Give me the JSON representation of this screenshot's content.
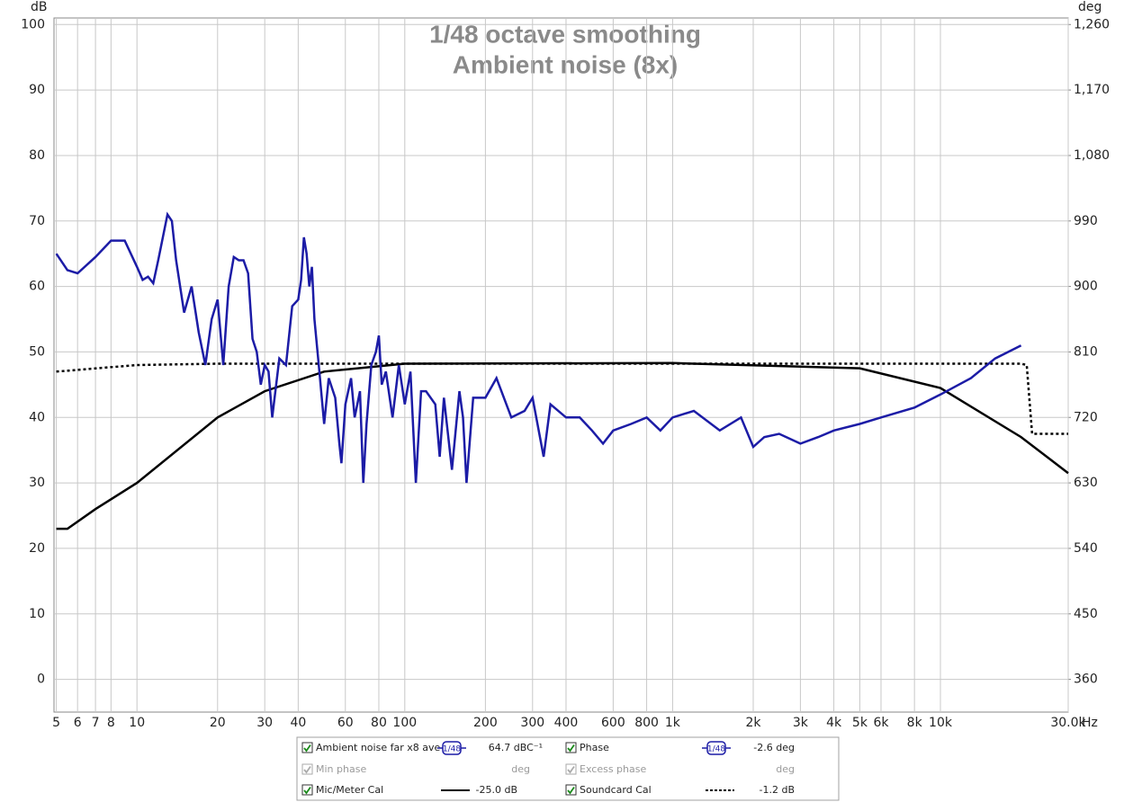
{
  "chart_data": {
    "type": "line",
    "title": "1/48 octave smoothing",
    "subtitle": "Ambient noise (8x)",
    "y_label": "dB",
    "y2_label": "deg",
    "x_label": "Hz",
    "xscale": "log",
    "grid": true,
    "xlim": [
      4.9,
      30000
    ],
    "ylim": [
      -5,
      101
    ],
    "y2lim": [
      315,
      1269
    ],
    "xticks": [
      5,
      6,
      7,
      8,
      10,
      20,
      30,
      40,
      60,
      80,
      100,
      200,
      300,
      400,
      600,
      800,
      {
        "value": 1000,
        "label": "1k"
      },
      {
        "value": 2000,
        "label": "2k"
      },
      {
        "value": 3000,
        "label": "3k"
      },
      {
        "value": 4000,
        "label": "4k"
      },
      {
        "value": 5000,
        "label": "5k"
      },
      {
        "value": 6000,
        "label": "6k"
      },
      {
        "value": 8000,
        "label": "8k"
      },
      {
        "value": 10000,
        "label": "10k"
      },
      {
        "value": 30000,
        "label": "30.0k"
      }
    ],
    "yticks": [
      0,
      10,
      20,
      30,
      40,
      50,
      60,
      70,
      80,
      90,
      100
    ],
    "y2ticks": [
      360,
      450,
      540,
      630,
      720,
      810,
      900,
      990,
      {
        "value": 1080,
        "label": "1,080"
      },
      {
        "value": 1170,
        "label": "1,170"
      },
      {
        "value": 1260,
        "label": "1,260"
      }
    ],
    "series": [
      {
        "name": "Ambient noise far x8 ave",
        "color": "#1c1ca6",
        "dash": "solid",
        "smoothing": "1/48",
        "readout": "64.7 dBC⁻¹",
        "x": [
          5,
          5.5,
          6,
          7,
          8,
          9,
          10,
          10.5,
          11,
          11.5,
          12,
          13,
          13.5,
          14,
          15,
          16,
          17,
          18,
          19,
          20,
          21,
          22,
          23,
          24,
          25,
          26,
          27,
          28,
          29,
          30,
          31,
          32,
          34,
          36,
          38,
          40,
          41,
          42,
          43,
          44,
          45,
          46,
          48,
          50,
          52,
          55,
          57,
          58,
          60,
          63,
          65,
          68,
          70,
          72,
          75,
          78,
          80,
          82,
          85,
          90,
          95,
          100,
          105,
          110,
          115,
          120,
          130,
          135,
          140,
          150,
          160,
          165,
          170,
          180,
          200,
          220,
          250,
          280,
          300,
          330,
          350,
          400,
          450,
          500,
          550,
          600,
          700,
          800,
          900,
          1000,
          1200,
          1500,
          1800,
          2000,
          2200,
          2500,
          3000,
          3500,
          4000,
          5000,
          6000,
          8000,
          10000,
          13000,
          16000,
          20000
        ],
        "values": [
          65,
          62.5,
          62,
          64.5,
          67,
          67,
          63,
          61,
          61.5,
          60.5,
          64,
          71,
          70,
          64,
          56,
          60,
          53,
          48,
          55,
          58,
          48,
          60,
          64.5,
          64,
          64,
          62,
          52,
          50,
          45,
          48,
          47,
          40,
          49,
          48,
          57,
          58,
          61,
          67.5,
          65,
          60,
          63,
          55,
          47,
          39,
          46,
          43,
          36,
          33,
          42,
          46,
          40,
          44,
          30,
          39,
          48,
          50,
          52.5,
          45,
          47,
          40,
          48,
          42,
          47,
          30,
          44,
          44,
          42,
          34,
          43,
          32,
          44,
          40,
          30,
          43,
          43,
          46,
          40,
          41,
          43,
          34,
          42,
          40,
          40,
          38,
          36,
          38,
          39,
          40,
          38,
          40,
          41,
          38,
          40,
          35.5,
          37,
          37.5,
          36,
          37,
          38,
          39,
          40,
          41.5,
          43.5,
          46,
          49,
          51
        ]
      },
      {
        "name": "Mic/Meter Cal",
        "color": "#000000",
        "dash": "solid",
        "readout": "-25.0 dB",
        "x": [
          5,
          5.5,
          7,
          10,
          20,
          30,
          50,
          100,
          1000,
          5000,
          10000,
          20000,
          30000
        ],
        "values": [
          23,
          23,
          26,
          30,
          40,
          44,
          47,
          48.2,
          48.3,
          47.5,
          44.5,
          37,
          31.5
        ]
      },
      {
        "name": "Soundcard Cal",
        "color": "#000000",
        "dash": "dotted",
        "readout": "-1.2 dB",
        "x": [
          5,
          10,
          20,
          20000,
          21000,
          22000,
          30000
        ],
        "values": [
          47,
          48,
          48.2,
          48.2,
          48,
          37.5,
          37.5
        ]
      }
    ],
    "phase": {
      "name": "Phase",
      "smoothing": "1/48",
      "readout": "-2.6 deg"
    },
    "min_phase": {
      "name": "Min phase",
      "readout": "deg"
    },
    "excess_phase": {
      "name": "Excess phase",
      "readout": "deg"
    }
  }
}
